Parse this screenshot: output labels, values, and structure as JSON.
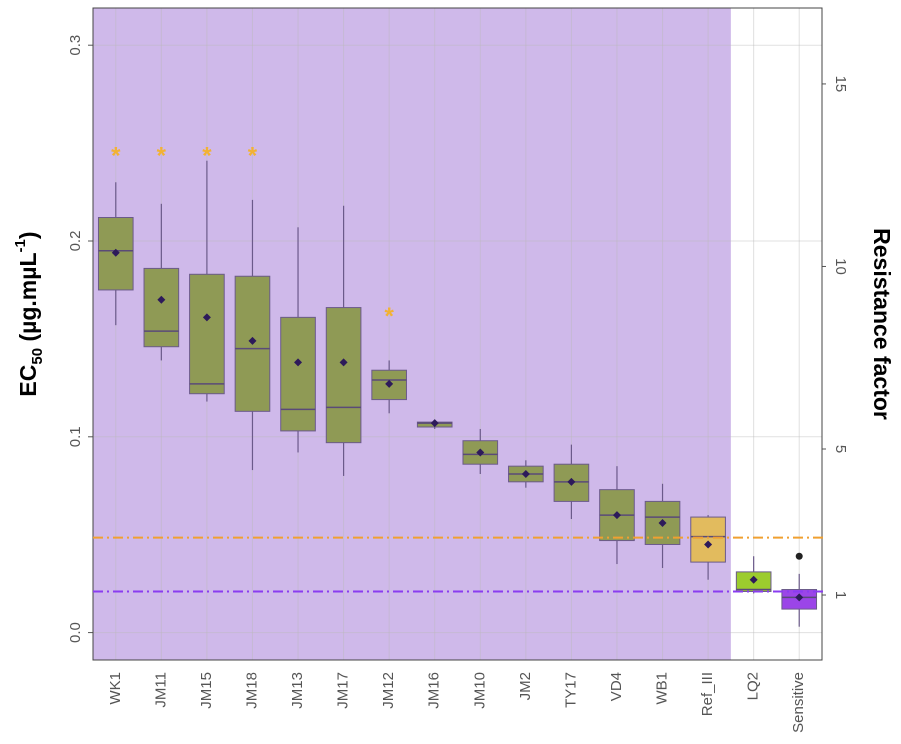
{
  "chart_data": {
    "type": "box",
    "categories": [
      "WK1",
      "JM11",
      "JM15",
      "JM18",
      "JM13",
      "JM17",
      "JM12",
      "JM16",
      "JM10",
      "JM2",
      "TY17",
      "VD4",
      "WB1",
      "Ref_III",
      "LQ2",
      "Sensitive"
    ],
    "boxes": [
      {
        "min": 0.157,
        "q1": 0.175,
        "median": 0.195,
        "q3": 0.212,
        "max": 0.23,
        "mean": 0.194
      },
      {
        "min": 0.139,
        "q1": 0.146,
        "median": 0.154,
        "q3": 0.186,
        "max": 0.219,
        "mean": 0.17
      },
      {
        "min": 0.118,
        "q1": 0.122,
        "median": 0.127,
        "q3": 0.183,
        "max": 0.241,
        "mean": 0.161
      },
      {
        "min": 0.083,
        "q1": 0.113,
        "median": 0.145,
        "q3": 0.182,
        "max": 0.221,
        "mean": 0.149
      },
      {
        "min": 0.092,
        "q1": 0.103,
        "median": 0.114,
        "q3": 0.161,
        "max": 0.207,
        "mean": 0.138
      },
      {
        "min": 0.08,
        "q1": 0.097,
        "median": 0.115,
        "q3": 0.166,
        "max": 0.218,
        "mean": 0.138
      },
      {
        "min": 0.112,
        "q1": 0.119,
        "median": 0.129,
        "q3": 0.134,
        "max": 0.139,
        "mean": 0.127
      },
      {
        "min": 0.104,
        "q1": 0.105,
        "median": 0.107,
        "q3": 0.1075,
        "max": 0.108,
        "mean": 0.107
      },
      {
        "min": 0.081,
        "q1": 0.086,
        "median": 0.091,
        "q3": 0.098,
        "max": 0.104,
        "mean": 0.092
      },
      {
        "min": 0.074,
        "q1": 0.077,
        "median": 0.081,
        "q3": 0.085,
        "max": 0.088,
        "mean": 0.081
      },
      {
        "min": 0.058,
        "q1": 0.067,
        "median": 0.077,
        "q3": 0.086,
        "max": 0.096,
        "mean": 0.077
      },
      {
        "min": 0.035,
        "q1": 0.047,
        "median": 0.06,
        "q3": 0.073,
        "max": 0.085,
        "mean": 0.06
      },
      {
        "min": 0.033,
        "q1": 0.045,
        "median": 0.059,
        "q3": 0.067,
        "max": 0.076,
        "mean": 0.056
      },
      {
        "min": 0.027,
        "q1": 0.036,
        "median": 0.049,
        "q3": 0.059,
        "max": 0.06,
        "mean": 0.045
      },
      {
        "min": 0.02,
        "q1": 0.021,
        "median": 0.022,
        "q3": 0.031,
        "max": 0.039,
        "mean": 0.027
      },
      {
        "min": 0.003,
        "q1": 0.012,
        "median": 0.018,
        "q3": 0.022,
        "max": 0.03,
        "mean": 0.018,
        "outliers": [
          0.039
        ]
      }
    ],
    "colors": [
      "#8f9a55",
      "#8f9a55",
      "#8f9a55",
      "#8f9a55",
      "#8f9a55",
      "#8f9a55",
      "#8f9a55",
      "#8f9a55",
      "#8f9a55",
      "#8f9a55",
      "#8f9a55",
      "#8f9a55",
      "#8f9a55",
      "#e2bb5e",
      "#9ccc2e",
      "#9b45e8"
    ],
    "annotations": [
      {
        "text": "*",
        "x": "WK1",
        "y": 0.246
      },
      {
        "text": "*",
        "x": "JM11",
        "y": 0.246
      },
      {
        "text": "*",
        "x": "JM15",
        "y": 0.246
      },
      {
        "text": "*",
        "x": "JM18",
        "y": 0.246
      },
      {
        "text": "*",
        "x": "JM12",
        "y": 0.164
      }
    ],
    "hlines": [
      {
        "y": 0.0485,
        "color": "#f0a030"
      },
      {
        "y": 0.021,
        "color": "#8a3cf0"
      }
    ],
    "highlight": {
      "through": "Ref_III",
      "color": "#cfb9ea"
    },
    "ylabel": [
      "EC",
      "50",
      " (µg.mµL",
      "-1",
      ")"
    ],
    "y2label": "Resistance factor",
    "ylim": [
      -0.014,
      0.319
    ],
    "yticks": [
      {
        "value": 0,
        "label": "0.0"
      },
      0.1,
      0.2,
      0.3
    ],
    "y2lim": [
      -0.78,
      17.08
    ],
    "y2ticks": [
      1,
      5,
      10,
      15
    ],
    "grid": true
  }
}
